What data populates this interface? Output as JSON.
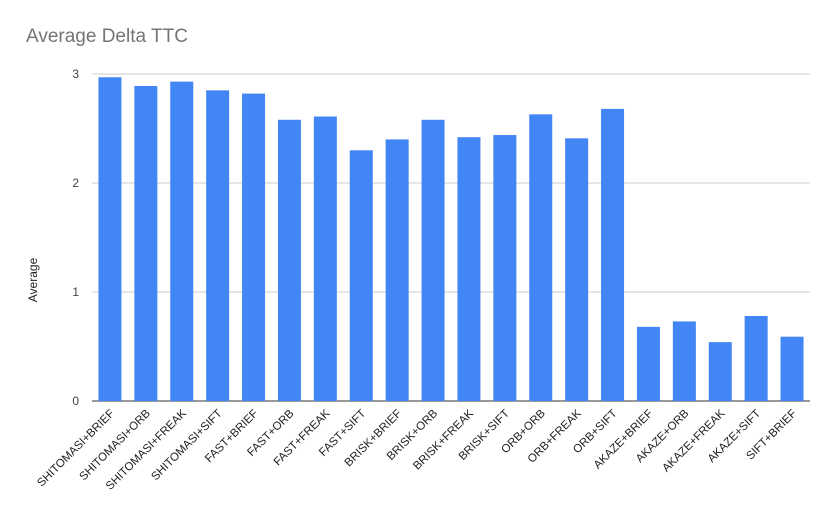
{
  "chart_data": {
    "type": "bar",
    "title": "Average Delta TTC",
    "xlabel": "",
    "ylabel": "Average",
    "ylim": [
      0,
      3
    ],
    "yticks": [
      0,
      1,
      2,
      3
    ],
    "grid": true,
    "bar_color": "#4285F4",
    "categories": [
      "SHITOMASI+BRIEF",
      "SHITOMASI+ORB",
      "SHITOMASI+FREAK",
      "SHITOMASI+SIFT",
      "FAST+BRIEF",
      "FAST+ORB",
      "FAST+FREAK",
      "FAST+SIFT",
      "BRISK+BRIEF",
      "BRISK+ORB",
      "BRISK+FREAK",
      "BRISK+SIFT",
      "ORB+ORB",
      "ORB+FREAK",
      "ORB+SIFT",
      "AKAZE+BRIEF",
      "AKAZE+ORB",
      "AKAZE+FREAK",
      "AKAZE+SIFT",
      "SIFT+BRIEF"
    ],
    "values": [
      2.97,
      2.89,
      2.93,
      2.85,
      2.82,
      2.58,
      2.61,
      2.3,
      2.4,
      2.58,
      2.42,
      2.44,
      2.63,
      2.41,
      2.68,
      0.68,
      0.73,
      0.54,
      0.78,
      0.59
    ]
  }
}
